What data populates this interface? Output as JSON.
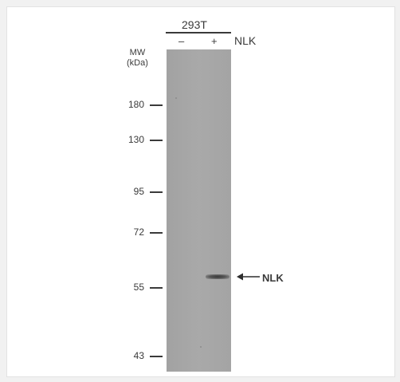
{
  "sample": {
    "cell_line": "293T",
    "lanes": [
      "–",
      "+"
    ],
    "target": "NLK"
  },
  "mw": {
    "header": "MW\n(kDa)",
    "markers": [
      "180",
      "130",
      "95",
      "72",
      "55",
      "43"
    ]
  },
  "band": {
    "label": "NLK",
    "arrow_icon": "left-arrow-icon"
  },
  "colors": {
    "blot": "#a6a6a6",
    "band": "#3a3a3a",
    "text": "#3a3a3a"
  }
}
